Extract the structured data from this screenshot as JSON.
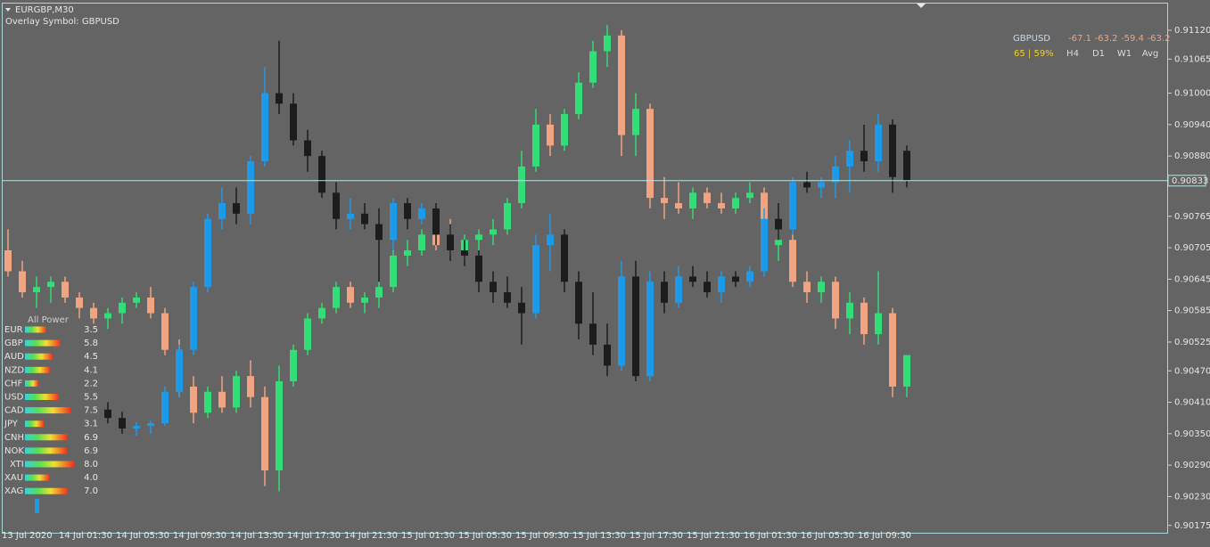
{
  "chart_data": {
    "type": "candlestick",
    "title": "EURGBP,M30",
    "subtitle": "Overlay Symbol: GBPUSD",
    "categories": [
      null,
      "13 Jul 2020",
      null,
      null,
      null,
      "14 Jul 01:30",
      null,
      null,
      null,
      "14 Jul 05:30",
      null,
      null,
      null,
      "14 Jul 09:30",
      null,
      null,
      null,
      "14 Jul 13:30",
      null,
      null,
      null,
      "14 Jul 17:30",
      null,
      null,
      null,
      "14 Jul 21:30",
      null,
      null,
      null,
      "15 Jul 01:30",
      null,
      null,
      null,
      "15 Jul 05:30",
      null,
      null,
      null,
      "15 Jul 09:30",
      null,
      null,
      null,
      "15 Jul 13:30",
      null,
      null,
      null,
      "15 Jul 17:30",
      null,
      null,
      null,
      "15 Jul 21:30",
      null,
      null,
      null,
      "16 Jul 01:30",
      null,
      null,
      null,
      "16 Jul 05:30",
      null,
      null,
      null,
      "16 Jul 09:30",
      null,
      null
    ],
    "ylim": [
      0.90161,
      0.91171
    ],
    "yticks": [
      {
        "value": 0.9112,
        "label": "0.91120"
      },
      0.91065,
      {
        "value": 0.91,
        "label": "0.91000"
      },
      {
        "value": 0.9094,
        "label": "0.90940"
      },
      {
        "value": 0.9088,
        "label": "0.90880"
      },
      0.90765,
      0.90705,
      0.90645,
      0.90585,
      0.90525,
      {
        "value": 0.9047,
        "label": "0.90470"
      },
      {
        "value": 0.9041,
        "label": "0.90410"
      },
      {
        "value": 0.9035,
        "label": "0.90350"
      },
      {
        "value": 0.9029,
        "label": "0.90290"
      },
      {
        "value": 0.9023,
        "label": "0.90230"
      },
      0.90175
    ],
    "current_price": 0.90833,
    "series": [
      {
        "up_color": "#33dd77",
        "down_color": "#f0a482",
        "open": [
          0.907,
          0.9066,
          0.9062,
          0.9063,
          0.9064,
          0.9061,
          0.9059,
          0.9057,
          0.9058,
          0.906,
          0.9061,
          0.9058,
          0.9051,
          0.9044,
          0.9039,
          0.9043,
          0.904,
          0.9046,
          0.9042,
          0.9028,
          0.9045,
          0.9051,
          0.9057,
          0.9059,
          0.9063,
          0.906,
          0.9061,
          0.9063,
          0.9069,
          0.907,
          0.9073,
          0.9071,
          0.907,
          0.9072,
          0.9073,
          0.9074,
          0.9079,
          0.9086,
          0.9094,
          0.909,
          0.9096,
          0.9102,
          0.9108,
          0.9111,
          0.9092,
          0.9097,
          0.908,
          0.9079,
          0.9078,
          0.9081,
          0.9079,
          0.9078,
          0.908,
          0.9081,
          0.9071,
          0.9072,
          0.9064,
          0.9062,
          0.9064,
          0.9057,
          0.906,
          0.9054,
          0.9058,
          0.9044
        ],
        "high": [
          0.9074,
          0.9068,
          0.9065,
          0.9065,
          0.9065,
          0.9062,
          0.906,
          0.9059,
          0.9061,
          0.9062,
          0.9063,
          0.9059,
          0.9053,
          0.9046,
          0.9044,
          0.9046,
          0.9047,
          0.9049,
          0.9044,
          0.9048,
          0.9052,
          0.9058,
          0.906,
          0.9064,
          0.9064,
          0.9062,
          0.9064,
          0.907,
          0.9072,
          0.9074,
          0.9078,
          0.9076,
          0.9073,
          0.9074,
          0.9076,
          0.908,
          0.9089,
          0.9097,
          0.9096,
          0.9097,
          0.9104,
          0.911,
          0.9113,
          0.9112,
          0.91,
          0.9098,
          0.9084,
          0.9083,
          0.9082,
          0.9082,
          0.9081,
          0.9081,
          0.9083,
          0.9082,
          0.9074,
          0.9073,
          0.9066,
          0.9065,
          0.9065,
          0.9062,
          0.9061,
          0.9066,
          0.9059,
          0.905
        ],
        "low": [
          0.9065,
          0.9061,
          0.9059,
          0.906,
          0.906,
          0.9057,
          0.9056,
          0.9055,
          0.9056,
          0.9059,
          0.9057,
          0.905,
          0.9042,
          0.9037,
          0.9038,
          0.9039,
          0.9039,
          0.904,
          0.9025,
          0.9024,
          0.9044,
          0.905,
          0.9056,
          0.9058,
          0.9059,
          0.9058,
          0.9059,
          0.9062,
          0.9067,
          0.9069,
          0.907,
          0.9069,
          0.9068,
          0.907,
          0.9071,
          0.9073,
          0.9078,
          0.9085,
          0.9088,
          0.9089,
          0.9095,
          0.9101,
          0.9105,
          0.9088,
          0.9088,
          0.9078,
          0.9076,
          0.9077,
          0.9076,
          0.9078,
          0.9077,
          0.9077,
          0.9079,
          0.9069,
          0.9068,
          0.9063,
          0.906,
          0.906,
          0.9055,
          0.9054,
          0.9052,
          0.9052,
          0.9042,
          0.9042
        ],
        "close": [
          0.9066,
          0.9062,
          0.9063,
          0.9064,
          0.9061,
          0.9059,
          0.9057,
          0.9058,
          0.906,
          0.9061,
          0.9058,
          0.9051,
          0.9044,
          0.9039,
          0.9043,
          0.904,
          0.9046,
          0.9042,
          0.9028,
          0.9045,
          0.9051,
          0.9057,
          0.9059,
          0.9063,
          0.906,
          0.9061,
          0.9063,
          0.9069,
          0.907,
          0.9073,
          0.9071,
          0.907,
          0.9072,
          0.9073,
          0.9074,
          0.9079,
          0.9086,
          0.9094,
          0.909,
          0.9096,
          0.9102,
          0.9108,
          0.9111,
          0.9092,
          0.9097,
          0.908,
          0.9079,
          0.9078,
          0.9081,
          0.9079,
          0.9078,
          0.908,
          0.9081,
          0.9071,
          0.9072,
          0.9064,
          0.9062,
          0.9064,
          0.9057,
          0.906,
          0.9054,
          0.9058,
          0.9044,
          0.905
        ]
      },
      {
        "up_color": "#1e9be8",
        "down_color": "#1c1c1c",
        "open": [
          null,
          null,
          null,
          null,
          null,
          null,
          null,
          0.90396,
          0.9038,
          0.9036,
          0.90365,
          0.9037,
          0.9043,
          0.9051,
          0.9063,
          0.9076,
          0.9079,
          0.9077,
          0.9087,
          0.91,
          0.9098,
          0.9091,
          0.9088,
          0.9081,
          0.9076,
          0.9077,
          0.9075,
          0.9072,
          0.9079,
          0.9076,
          0.9078,
          0.9073,
          0.907,
          0.9069,
          0.9064,
          0.9062,
          0.906,
          0.9058,
          0.9071,
          0.9073,
          0.9064,
          0.9056,
          0.9052,
          0.9048,
          0.9065,
          0.9046,
          0.9064,
          0.906,
          0.9065,
          0.9064,
          0.9062,
          0.9065,
          0.9064,
          0.9066,
          0.9076,
          0.9074,
          0.9083,
          0.9082,
          0.9083,
          0.9086,
          0.9089,
          0.9087,
          0.9094,
          0.9089
        ],
        "high": [
          null,
          null,
          null,
          null,
          null,
          null,
          null,
          0.9041,
          0.90392,
          0.90372,
          0.90375,
          0.9044,
          0.9052,
          0.9064,
          0.9077,
          0.9082,
          0.9082,
          0.9088,
          0.9105,
          0.911,
          0.91,
          0.9093,
          0.9089,
          0.9083,
          0.908,
          0.9079,
          0.9078,
          0.908,
          0.908,
          0.9079,
          0.9079,
          0.9075,
          0.9072,
          0.907,
          0.9066,
          0.9065,
          0.9063,
          0.9073,
          0.9077,
          0.9074,
          0.9066,
          0.9062,
          0.9056,
          0.9068,
          0.9068,
          0.9066,
          0.9066,
          0.9067,
          0.9067,
          0.9066,
          0.9066,
          0.9066,
          0.9067,
          0.9078,
          0.9079,
          0.9084,
          0.9085,
          0.9084,
          0.9088,
          0.9091,
          0.9094,
          0.9096,
          0.9095,
          0.909
        ],
        "low": [
          null,
          null,
          null,
          null,
          null,
          null,
          null,
          0.9037,
          0.9035,
          0.90346,
          0.9035,
          0.90365,
          0.9042,
          0.905,
          0.9062,
          0.9074,
          0.9075,
          0.9075,
          0.9086,
          0.9096,
          0.909,
          0.9085,
          0.908,
          0.9074,
          0.9074,
          0.9074,
          0.9064,
          0.907,
          0.9074,
          0.9075,
          0.9071,
          0.9068,
          0.9067,
          0.9062,
          0.906,
          0.9059,
          0.9052,
          0.9057,
          0.9066,
          0.9062,
          0.9053,
          0.905,
          0.9046,
          0.9047,
          0.9045,
          0.9045,
          0.9058,
          0.9059,
          0.9063,
          0.9061,
          0.906,
          0.9063,
          0.9063,
          0.9065,
          0.9072,
          0.9073,
          0.9081,
          0.908,
          0.908,
          0.9081,
          0.9085,
          0.9085,
          0.9081,
          0.9082
        ],
        "close": [
          null,
          null,
          null,
          null,
          null,
          null,
          null,
          0.9038,
          0.9036,
          0.90365,
          0.9037,
          0.9043,
          0.9051,
          0.9063,
          0.9076,
          0.9079,
          0.9077,
          0.9087,
          0.91,
          0.9098,
          0.9091,
          0.9088,
          0.9081,
          0.9076,
          0.9077,
          0.9075,
          0.9072,
          0.9079,
          0.9076,
          0.9078,
          0.9073,
          0.907,
          0.9069,
          0.9064,
          0.9062,
          0.906,
          0.9058,
          0.9071,
          0.9073,
          0.9064,
          0.9056,
          0.9052,
          0.9048,
          0.9065,
          0.9046,
          0.9064,
          0.906,
          0.9065,
          0.9064,
          0.9062,
          0.9065,
          0.9064,
          0.9066,
          0.9076,
          0.9074,
          0.9083,
          0.9082,
          0.9083,
          0.9086,
          0.9089,
          0.9087,
          0.9094,
          0.9084,
          0.90833
        ]
      }
    ]
  },
  "strength_panel": {
    "title": "All Power",
    "currencies": [
      "EUR",
      "GBP",
      "AUD",
      "NZD",
      "CHF",
      "USD",
      "CAD",
      "JPY",
      "CNH",
      "NOK",
      "XTI",
      "XAU",
      "XAG"
    ],
    "values": [
      3.5,
      5.8,
      4.5,
      4.1,
      2.2,
      5.5,
      7.5,
      3.1,
      6.9,
      6.9,
      8.0,
      4.0,
      7.0
    ],
    "value_labels": [
      "3.5",
      "5.8",
      "4.5",
      "4.1",
      "2.2",
      "5.5",
      "7.5",
      "3.1",
      "6.9",
      "6.9",
      "8.0",
      "4.0",
      "7.0"
    ],
    "max": 8
  },
  "info_panel": {
    "symbol": "GBPUSD",
    "values": [
      -67.1,
      -63.2,
      -59.4,
      -63.2
    ],
    "score": "65 | 59%",
    "periods": [
      "H4",
      "D1",
      "W1",
      "Avg"
    ]
  }
}
